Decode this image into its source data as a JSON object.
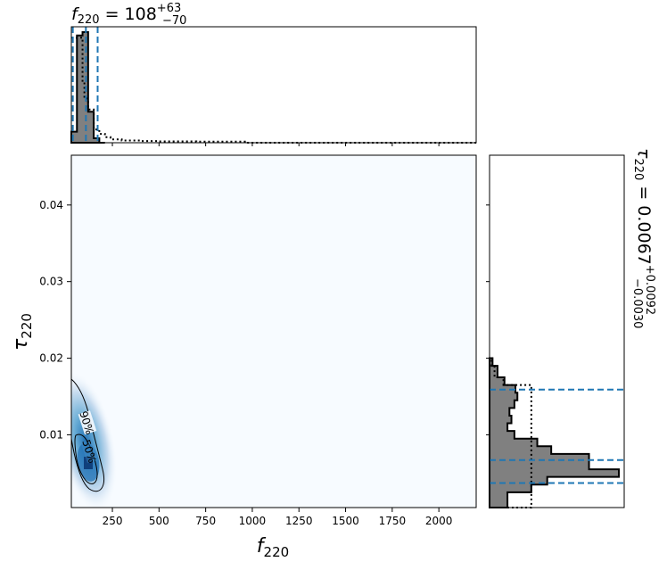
{
  "chart_data": [
    {
      "type": "heatmap",
      "panel": "joint",
      "xlabel": "f_220",
      "ylabel": "τ_220",
      "xlim": [
        30,
        2200
      ],
      "ylim": [
        0.0005,
        0.0465
      ],
      "x_ticks": [
        250,
        500,
        750,
        1000,
        1250,
        1500,
        1750,
        2000
      ],
      "y_ticks": [
        0.01,
        0.02,
        0.03,
        0.04
      ],
      "x_tick_labels": [
        "250",
        "500",
        "750",
        "1000",
        "1250",
        "1500",
        "1750",
        "2000"
      ],
      "y_tick_labels": [
        "0.01",
        "0.02",
        "0.03",
        "0.04"
      ],
      "density_peak": {
        "f": 108,
        "tau": 0.0062
      },
      "contours": [
        {
          "label": "90%",
          "level": 0.9
        },
        {
          "label": "50%",
          "level": 0.5
        }
      ],
      "colormap": [
        "#f7fbff",
        "#c6dbef",
        "#6baed6",
        "#2171b5",
        "#08306b"
      ]
    },
    {
      "type": "bar",
      "panel": "top-marginal",
      "xlabel": "f_220",
      "xlim": [
        30,
        2200
      ],
      "bin_edges": [
        30,
        60,
        90,
        120,
        150,
        180,
        210
      ],
      "posterior_counts": [
        10,
        97,
        100,
        28,
        4,
        0
      ],
      "prior_step_x": [
        30,
        60,
        90,
        100,
        120,
        150,
        180,
        210,
        240,
        300,
        400,
        500,
        700,
        960,
        2200
      ],
      "prior_step_y": [
        95,
        95,
        55,
        40,
        30,
        12,
        8,
        5,
        3,
        2,
        1.5,
        1.2,
        1,
        0,
        0
      ],
      "credible_interval": {
        "median": 108,
        "lower": 38,
        "upper": 171
      },
      "title_label": "f",
      "title_sub": "220",
      "title_value": " = 108",
      "title_plus": "+63",
      "title_minus": "−70"
    },
    {
      "type": "bar",
      "panel": "right-marginal",
      "ylabel": "τ_220",
      "ylim": [
        0.0005,
        0.0465
      ],
      "bin_edges": [
        0.0005,
        0.0025,
        0.0035,
        0.0045,
        0.0055,
        0.0065,
        0.0075,
        0.0085,
        0.0095,
        0.0105,
        0.0115,
        0.0125,
        0.0135,
        0.0145,
        0.0155,
        0.0165,
        0.0175,
        0.019,
        0.02
      ],
      "posterior_counts": [
        18,
        42,
        58,
        130,
        100,
        100,
        62,
        48,
        25,
        18,
        22,
        20,
        25,
        28,
        26,
        15,
        8,
        3
      ],
      "prior_counts": [
        42,
        42,
        42,
        42,
        42,
        42,
        42,
        42,
        42,
        42,
        42,
        42,
        42,
        42,
        42,
        14,
        5,
        2
      ],
      "credible_interval": {
        "median": 0.0067,
        "lower": 0.0037,
        "upper": 0.0159
      },
      "title_label": "τ",
      "title_sub": "220",
      "title_value": " = 0.0067",
      "title_plus": "+0.0092",
      "title_minus": "−0.0030"
    }
  ]
}
